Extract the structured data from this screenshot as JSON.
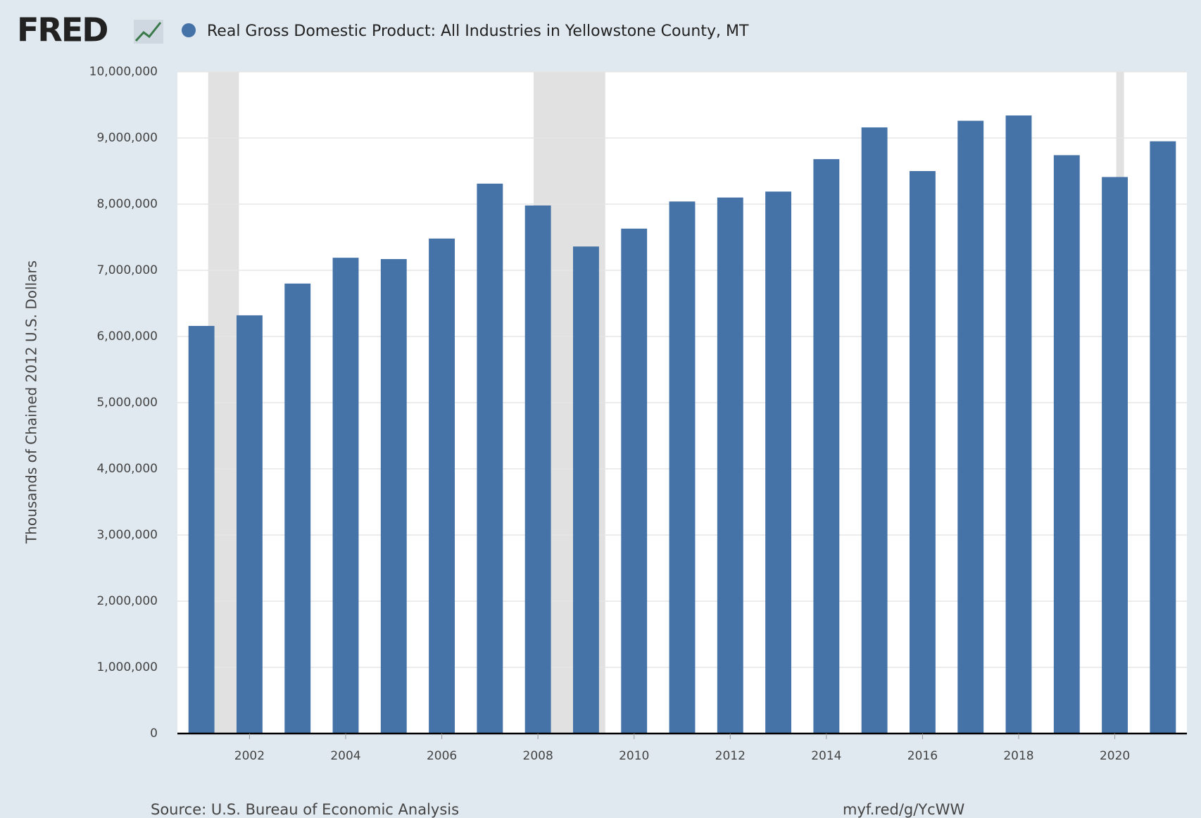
{
  "logo": "FRED",
  "chart_data": {
    "type": "bar",
    "title": "Real Gross Domestic Product: All Industries in Yellowstone County, MT",
    "y_label": "Thousands of Chained 2012 U.S. Dollars",
    "source": "Source: U.S. Bureau of Economic Analysis",
    "link": "myf.red/g/YcWW",
    "x": [
      2001,
      2002,
      2003,
      2004,
      2005,
      2006,
      2007,
      2008,
      2009,
      2010,
      2011,
      2012,
      2013,
      2014,
      2015,
      2016,
      2017,
      2018,
      2019,
      2020,
      2021
    ],
    "series": [
      {
        "name": "Real Gross Domestic Product: All Industries in Yellowstone County, MT",
        "color": "#4572a7",
        "values": [
          6160000,
          6320000,
          6800000,
          7190000,
          7170000,
          7480000,
          8310000,
          7980000,
          7360000,
          7630000,
          8040000,
          8100000,
          8190000,
          8680000,
          9160000,
          8500000,
          9260000,
          9340000,
          8740000,
          8410000,
          8950000
        ]
      }
    ],
    "recessions": [
      [
        2001.14,
        2001.78
      ],
      [
        2007.91,
        2009.4
      ],
      [
        2020.03,
        2020.19
      ]
    ],
    "recession_color": "#e1e1e1",
    "xlim": [
      2000.5,
      2021.5
    ],
    "xticks": [
      2002,
      2004,
      2006,
      2008,
      2010,
      2012,
      2014,
      2016,
      2018,
      2020
    ],
    "ylim": [
      0,
      10000000
    ],
    "yticks": [
      0,
      {
        "value": 1000000,
        "label": "1,000,000"
      },
      {
        "value": 2000000,
        "label": "2,000,000"
      },
      {
        "value": 3000000,
        "label": "3,000,000"
      },
      {
        "value": 4000000,
        "label": "4,000,000"
      },
      {
        "value": 5000000,
        "label": "5,000,000"
      },
      {
        "value": 6000000,
        "label": "6,000,000"
      },
      {
        "value": 7000000,
        "label": "7,000,000"
      },
      {
        "value": 8000000,
        "label": "8,000,000"
      },
      {
        "value": 9000000,
        "label": "9,000,000"
      },
      {
        "value": 10000000,
        "label": "10,000,000"
      }
    ],
    "grid": true
  }
}
